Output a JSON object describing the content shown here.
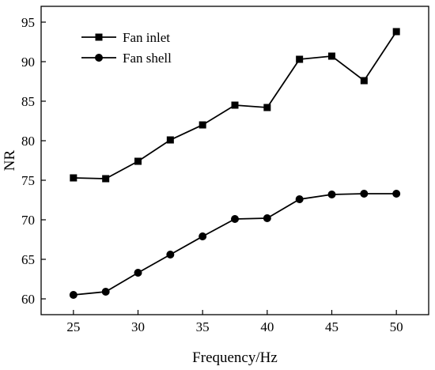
{
  "chart_data": {
    "type": "line",
    "title": "",
    "xlabel": "Frequency/Hz",
    "ylabel": "NR",
    "xlim": [
      22.5,
      52.5
    ],
    "ylim": [
      58,
      97
    ],
    "x_ticks": [
      25,
      30,
      35,
      40,
      45,
      50
    ],
    "y_ticks": [
      60,
      65,
      70,
      75,
      80,
      85,
      90,
      95
    ],
    "grid": false,
    "legend_position": "top-left",
    "x": [
      25,
      27.5,
      30,
      32.5,
      35,
      37.5,
      40,
      42.5,
      45,
      47.5,
      50
    ],
    "series": [
      {
        "name": "Fan inlet",
        "marker": "square",
        "color": "#000000",
        "values": [
          75.3,
          75.2,
          77.4,
          80.1,
          82.0,
          84.5,
          84.2,
          90.3,
          90.7,
          87.6,
          93.8
        ]
      },
      {
        "name": "Fan shell",
        "marker": "circle",
        "color": "#000000",
        "values": [
          60.5,
          60.9,
          63.3,
          65.6,
          67.9,
          70.1,
          70.2,
          72.6,
          73.2,
          73.3,
          73.3
        ]
      }
    ]
  }
}
